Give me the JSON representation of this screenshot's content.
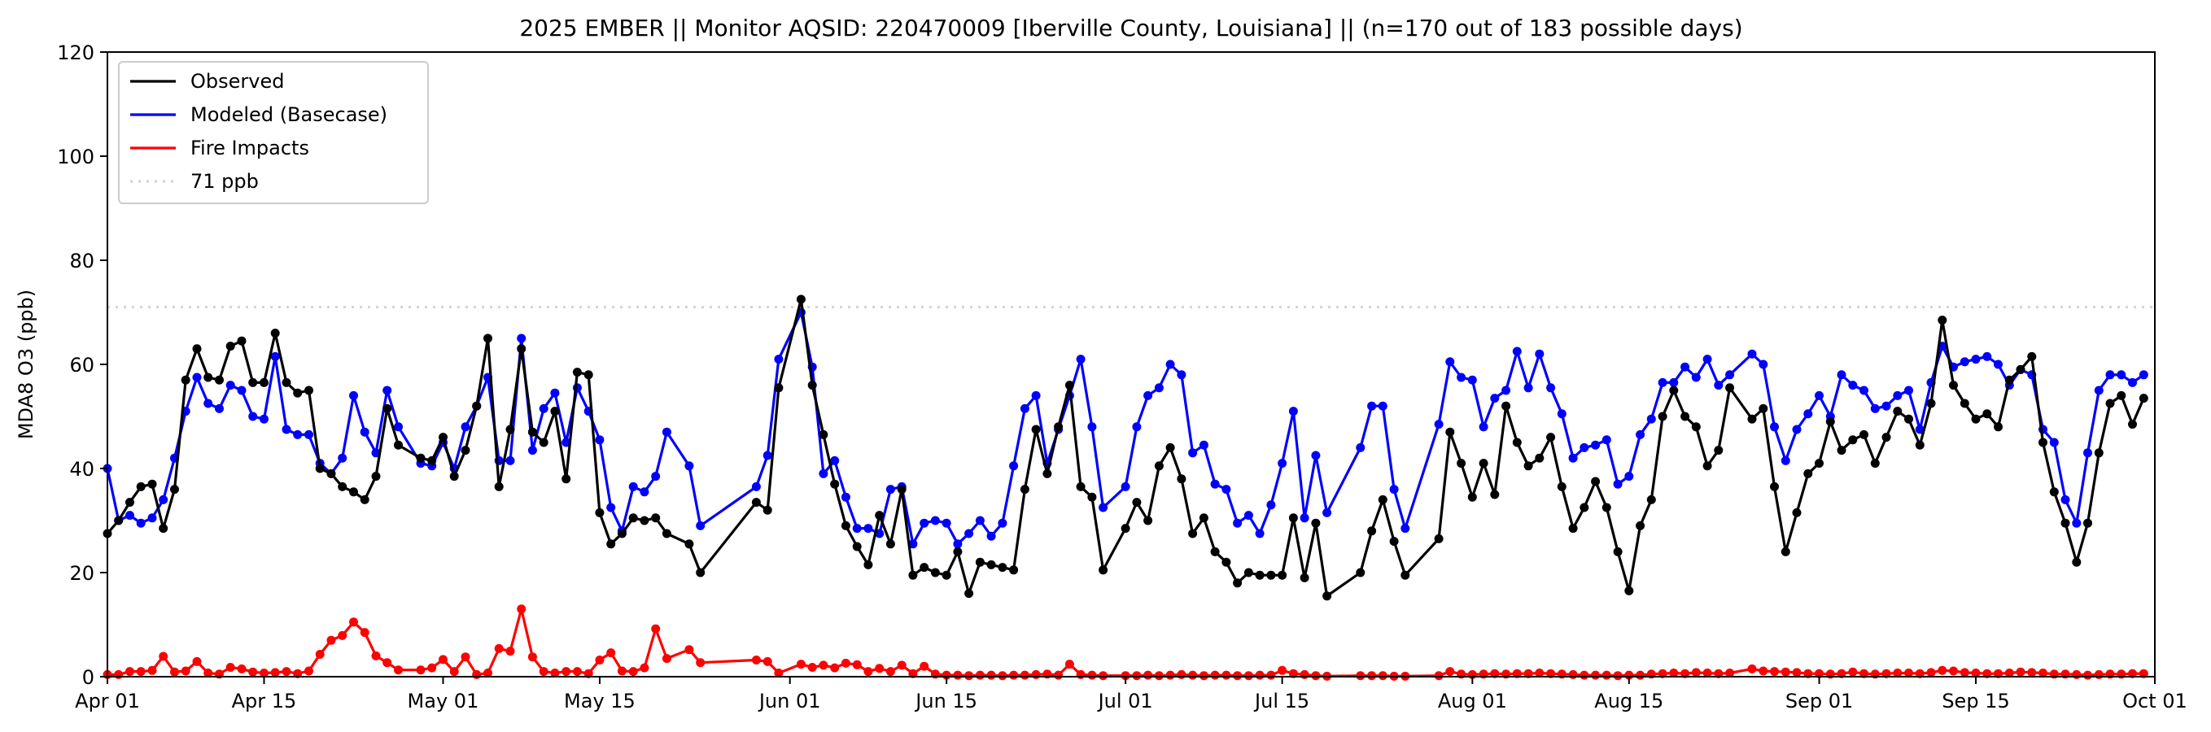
{
  "chart_data": {
    "type": "line",
    "title": "2025 EMBER || Monitor AQSID: 220470009 [Iberville County, Louisiana] || (n=170 out of 183 possible days)",
    "xlabel": "",
    "ylabel": "MDA8 O3 (ppb)",
    "year": 2025,
    "xlim": [
      "04-01",
      "10-01"
    ],
    "ylim": [
      0,
      120
    ],
    "yticks": [
      0,
      20,
      40,
      60,
      80,
      100,
      120
    ],
    "xticks": [
      {
        "date": "04-01",
        "label": "Apr 01"
      },
      {
        "date": "04-15",
        "label": "Apr 15"
      },
      {
        "date": "05-01",
        "label": "May 01"
      },
      {
        "date": "05-15",
        "label": "May 15"
      },
      {
        "date": "06-01",
        "label": "Jun 01"
      },
      {
        "date": "06-15",
        "label": "Jun 15"
      },
      {
        "date": "07-01",
        "label": "Jul 01"
      },
      {
        "date": "07-15",
        "label": "Jul 15"
      },
      {
        "date": "08-01",
        "label": "Aug 01"
      },
      {
        "date": "08-15",
        "label": "Aug 15"
      },
      {
        "date": "09-01",
        "label": "Sep 01"
      },
      {
        "date": "09-15",
        "label": "Sep 15"
      },
      {
        "date": "10-01",
        "label": "Oct 01"
      }
    ],
    "grid": false,
    "legend_position": "top-left",
    "reference_line": {
      "label": "71 ppb",
      "value": 71,
      "color": "#d3d3d3",
      "style": "dotted"
    },
    "dates": [
      "04-01",
      "04-02",
      "04-03",
      "04-04",
      "04-05",
      "04-06",
      "04-07",
      "04-08",
      "04-09",
      "04-10",
      "04-11",
      "04-12",
      "04-13",
      "04-14",
      "04-15",
      "04-16",
      "04-17",
      "04-18",
      "04-19",
      "04-20",
      "04-21",
      "04-22",
      "04-23",
      "04-24",
      "04-25",
      "04-26",
      "04-27",
      "04-29",
      "04-30",
      "05-01",
      "05-02",
      "05-03",
      "05-04",
      "05-05",
      "05-06",
      "05-07",
      "05-08",
      "05-09",
      "05-10",
      "05-11",
      "05-12",
      "05-13",
      "05-14",
      "05-15",
      "05-16",
      "05-17",
      "05-18",
      "05-19",
      "05-20",
      "05-21",
      "05-23",
      "05-24",
      "05-29",
      "05-30",
      "05-31",
      "06-02",
      "06-03",
      "06-04",
      "06-05",
      "06-06",
      "06-07",
      "06-08",
      "06-09",
      "06-10",
      "06-11",
      "06-12",
      "06-13",
      "06-14",
      "06-15",
      "06-16",
      "06-17",
      "06-18",
      "06-19",
      "06-20",
      "06-21",
      "06-22",
      "06-23",
      "06-24",
      "06-25",
      "06-26",
      "06-27",
      "06-28",
      "06-29",
      "07-01",
      "07-02",
      "07-03",
      "07-04",
      "07-05",
      "07-06",
      "07-07",
      "07-08",
      "07-09",
      "07-10",
      "07-11",
      "07-12",
      "07-13",
      "07-14",
      "07-15",
      "07-16",
      "07-17",
      "07-18",
      "07-19",
      "07-22",
      "07-23",
      "07-24",
      "07-25",
      "07-26",
      "07-29",
      "07-30",
      "07-31",
      "08-01",
      "08-02",
      "08-03",
      "08-04",
      "08-05",
      "08-06",
      "08-07",
      "08-08",
      "08-09",
      "08-10",
      "08-11",
      "08-12",
      "08-13",
      "08-14",
      "08-15",
      "08-16",
      "08-17",
      "08-18",
      "08-19",
      "08-20",
      "08-21",
      "08-22",
      "08-23",
      "08-24",
      "08-26",
      "08-27",
      "08-28",
      "08-29",
      "08-30",
      "08-31",
      "09-01",
      "09-02",
      "09-03",
      "09-04",
      "09-05",
      "09-06",
      "09-07",
      "09-08",
      "09-09",
      "09-10",
      "09-11",
      "09-12",
      "09-13",
      "09-14",
      "09-15",
      "09-16",
      "09-17",
      "09-18",
      "09-19",
      "09-20",
      "09-21",
      "09-22",
      "09-23",
      "09-24",
      "09-25",
      "09-26",
      "09-27",
      "09-28",
      "09-29",
      "09-30"
    ],
    "series": [
      {
        "name": "Observed",
        "color": "#000000",
        "values": [
          27.5,
          30,
          33.5,
          36.5,
          37,
          28.5,
          36,
          57,
          63,
          57.5,
          57,
          63.5,
          64.5,
          56.5,
          56.5,
          66,
          56.5,
          54.5,
          55,
          40,
          39,
          36.5,
          35.5,
          34,
          38.5,
          51.5,
          44.5,
          42,
          41.5,
          46,
          38.5,
          43.5,
          52,
          65,
          36.5,
          47.5,
          63,
          47,
          45,
          51,
          38,
          58.5,
          58,
          31.5,
          25.5,
          27.5,
          30.5,
          30,
          30.5,
          27.5,
          25.5,
          20,
          33.5,
          32,
          55.5,
          72.5,
          56,
          46.5,
          37,
          29,
          25,
          21.5,
          31,
          25.5,
          36,
          19.5,
          21,
          20,
          19.5,
          24,
          16,
          22,
          21.5,
          21,
          20.5,
          36,
          47.5,
          39,
          48,
          56,
          36.5,
          34.5,
          20.5,
          28.5,
          33.5,
          30,
          40.5,
          44,
          38,
          27.5,
          30.5,
          24,
          22,
          18,
          20,
          19.5,
          19.5,
          19.5,
          30.5,
          19,
          29.5,
          15.5,
          20,
          28,
          34,
          26,
          19.5,
          26.5,
          47,
          41,
          34.5,
          41,
          35,
          52,
          45,
          40.5,
          42,
          46,
          36.5,
          28.5,
          32.5,
          37.5,
          32.5,
          24,
          16.5,
          29,
          34,
          50,
          55,
          50,
          48,
          40.5,
          43.5,
          55.5,
          49.5,
          51.5,
          36.5,
          24,
          31.5,
          39,
          41,
          49,
          43.5,
          45.5,
          46.5,
          41,
          46,
          51,
          49.5,
          44.5,
          52.5,
          68.5,
          56,
          52.5,
          49.5,
          50.5,
          48,
          57,
          59,
          61.5,
          45,
          35.5,
          29.5,
          22,
          29.5,
          43,
          52.5,
          54,
          48.5,
          53.5
        ]
      },
      {
        "name": "Modeled (Basecase)",
        "color": "#0000ff",
        "values": [
          40,
          30,
          31,
          29.5,
          30.5,
          34,
          42,
          51,
          57.5,
          52.5,
          51.5,
          56,
          55,
          50,
          49.5,
          61.5,
          47.5,
          46.5,
          46.5,
          41,
          39,
          42,
          54,
          47,
          43,
          55,
          48,
          41,
          40.5,
          45,
          40,
          48,
          52,
          57.5,
          41.5,
          41.5,
          65,
          43.5,
          51.5,
          54.5,
          45,
          55.5,
          51,
          45.5,
          32.5,
          28,
          36.5,
          35.5,
          38.5,
          47,
          40.5,
          29,
          36.5,
          42.5,
          61,
          70,
          59.5,
          39,
          41.5,
          34.5,
          28.5,
          28.5,
          27.5,
          36,
          36.5,
          25.5,
          29.5,
          30,
          29.5,
          25.5,
          27.5,
          30,
          27,
          29.5,
          40.5,
          51.5,
          54,
          41,
          47.5,
          54,
          61,
          48,
          32.5,
          36.5,
          48,
          54,
          55.5,
          60,
          58,
          43,
          44.5,
          37,
          36,
          29.5,
          31,
          27.5,
          33,
          41,
          51,
          30.5,
          42.5,
          31.5,
          44,
          52,
          52,
          36,
          28.5,
          48.5,
          60.5,
          57.5,
          57,
          48,
          53.5,
          55,
          62.5,
          55.5,
          62,
          55.5,
          50.5,
          42,
          44,
          44.5,
          45.5,
          37,
          38.5,
          46.5,
          49.5,
          56.5,
          56.5,
          59.5,
          57.5,
          61,
          56,
          58,
          62,
          60,
          48,
          41.5,
          47.5,
          50.5,
          54,
          50,
          58,
          56,
          55,
          51.5,
          52,
          54,
          55,
          47.5,
          56.5,
          63.5,
          59.5,
          60.5,
          61,
          61.5,
          60,
          56,
          59,
          58,
          47.5,
          45,
          34,
          29.5,
          43,
          55,
          58,
          58,
          56.5,
          58
        ]
      },
      {
        "name": "Fire Impacts",
        "color": "#ff0000",
        "values": [
          0.4,
          0.4,
          1,
          1,
          1.2,
          3.9,
          0.9,
          1.1,
          2.9,
          0.7,
          0.5,
          1.8,
          1.5,
          0.9,
          0.7,
          0.8,
          1,
          0.6,
          1.1,
          4.3,
          7,
          7.9,
          10.5,
          8.5,
          4,
          2.7,
          1.3,
          1.3,
          1.7,
          3.3,
          1,
          3.8,
          0.4,
          0.7,
          5.4,
          4.9,
          13,
          3.8,
          1,
          0.7,
          1,
          1,
          0.6,
          3.2,
          4.6,
          1.1,
          1,
          1.7,
          9.2,
          3.5,
          5.2,
          2.7,
          3.2,
          2.9,
          0.7,
          2.4,
          1.8,
          2.2,
          1.7,
          2.6,
          2.3,
          1,
          1.6,
          1,
          2.2,
          0.6,
          2,
          0.5,
          0.3,
          0.3,
          0.2,
          0.3,
          0.3,
          0.2,
          0.3,
          0.3,
          0.4,
          0.5,
          0.3,
          2.4,
          0.4,
          0.3,
          0.2,
          0.2,
          0.2,
          0.3,
          0.2,
          0.3,
          0.4,
          0.3,
          0.2,
          0.3,
          0.3,
          0.2,
          0.2,
          0.3,
          0.3,
          1.2,
          0.6,
          0.4,
          0.2,
          0.1,
          0.2,
          0.2,
          0.2,
          0.1,
          0.1,
          0.2,
          1,
          0.5,
          0.4,
          0.5,
          0.6,
          0.5,
          0.6,
          0.6,
          0.7,
          0.6,
          0.5,
          0.4,
          0.3,
          0.3,
          0.3,
          0.2,
          0.3,
          0.3,
          0.5,
          0.6,
          0.7,
          0.6,
          0.8,
          0.7,
          0.6,
          0.7,
          1.5,
          1.1,
          1,
          0.9,
          0.8,
          0.6,
          0.6,
          0.5,
          0.6,
          0.9,
          0.6,
          0.5,
          0.6,
          0.7,
          0.7,
          0.6,
          0.8,
          1.2,
          1.1,
          0.8,
          0.7,
          0.6,
          0.6,
          0.7,
          0.9,
          0.8,
          0.7,
          0.5,
          0.5,
          0.4,
          0.3,
          0.4,
          0.5,
          0.5,
          0.6,
          0.6
        ]
      }
    ]
  }
}
